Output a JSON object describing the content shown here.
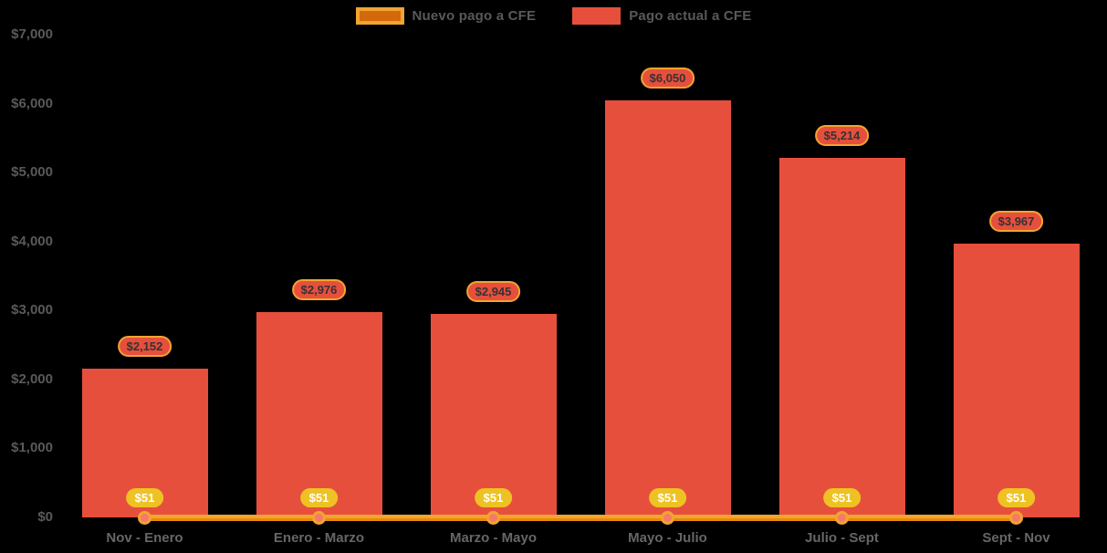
{
  "colors": {
    "background": "#000000",
    "bar": "#E74F3D",
    "pill_border": "#F2A42F",
    "line": "#F2A42F",
    "line_shade": "#E8890A",
    "marker_fill": "#F5796C",
    "marker_ring": "#F2A42F",
    "value_pill_fill": "#EFC223",
    "value_pill_text": "#FFFFFF",
    "bar_label_text": "#333333",
    "axis_text": "#595959",
    "legend_text": "#595959",
    "legend_new_fill": "#D2690B",
    "legend_new_border": "#F2A42F"
  },
  "legend": [
    {
      "label": "Nuevo pago a CFE",
      "swatch": "line"
    },
    {
      "label": "Pago actual a CFE",
      "swatch": "bar"
    }
  ],
  "chart_data": {
    "type": "bar",
    "title": "",
    "xlabel": "",
    "ylabel": "",
    "categories": [
      "Nov - Enero",
      "Enero - Marzo",
      "Marzo - Mayo",
      "Mayo - Julio",
      "Julio - Sept",
      "Sept - Nov"
    ],
    "series": [
      {
        "name": "Nuevo pago a CFE",
        "type": "line",
        "values": [
          51,
          51,
          51,
          51,
          51,
          51
        ],
        "labels": [
          "$51",
          "$51",
          "$51",
          "$51",
          "$51",
          "$51"
        ]
      },
      {
        "name": "Pago actual a CFE",
        "type": "bar",
        "values": [
          2152,
          2976,
          2945,
          6050,
          5214,
          3967
        ],
        "labels": [
          "$2,152",
          "$2,976",
          "$2,945",
          "$6,050",
          "$5,214",
          "$3,967"
        ]
      }
    ],
    "ylim": [
      0,
      7000
    ],
    "yticks": [
      0,
      1000,
      2000,
      3000,
      4000,
      5000,
      6000,
      7000
    ],
    "ytick_labels": [
      "$0",
      "$1,000",
      "$2,000",
      "$3,000",
      "$4,000",
      "$5,000",
      "$6,000",
      "$7,000"
    ],
    "grid": false,
    "legend_position": "top-center"
  }
}
